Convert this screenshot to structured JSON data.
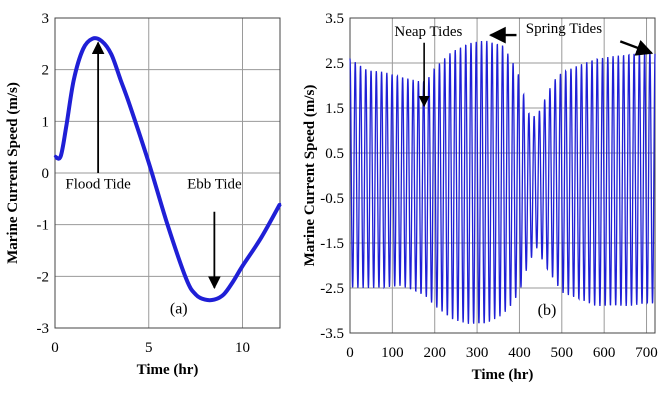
{
  "chart_data": [
    {
      "type": "line",
      "panel_label": "(a)",
      "xlabel": "Time (hr)",
      "ylabel": "Marine Current Speed (m/s)",
      "xlim": [
        0,
        12
      ],
      "ylim": [
        -3,
        3
      ],
      "xticks": [
        0,
        5,
        10
      ],
      "yticks": [
        -3,
        -2,
        -1,
        0,
        1,
        2,
        3
      ],
      "grid": true,
      "series": [
        {
          "color": "#1f1fd6",
          "x": [
            0,
            0.3,
            0.6,
            1.0,
            1.5,
            2.0,
            2.5,
            3.0,
            3.5,
            4.0,
            5.0,
            6.0,
            7.0,
            7.5,
            8.0,
            8.5,
            9.0,
            9.5,
            10.0,
            11.0,
            12.0
          ],
          "y": [
            0.32,
            0.32,
            0.9,
            1.8,
            2.4,
            2.6,
            2.55,
            2.3,
            1.8,
            1.3,
            0.2,
            -1.0,
            -2.05,
            -2.35,
            -2.45,
            -2.45,
            -2.35,
            -2.1,
            -1.8,
            -1.25,
            -0.6
          ]
        }
      ],
      "annotations": [
        {
          "text": "Flood Tide",
          "x": 2.3,
          "y": 2.6
        },
        {
          "text": "Ebb Tide",
          "x": 8.5,
          "y": -2.3
        }
      ]
    },
    {
      "type": "line",
      "panel_label": "(b)",
      "xlabel": "Time (hr)",
      "ylabel": "Marine Current Speed (m/s)",
      "xlim": [
        0,
        720
      ],
      "ylim": [
        -3.5,
        3.5
      ],
      "xticks": [
        0,
        100,
        200,
        300,
        400,
        500,
        600,
        700
      ],
      "yticks": [
        -3.5,
        -2.5,
        -1.5,
        -0.5,
        0.5,
        1.5,
        2.5,
        3.5
      ],
      "grid": true,
      "series": [
        {
          "color": "#1f1fd6",
          "period_hr": 12.42,
          "x": [
            0,
            40,
            80,
            120,
            160,
            180,
            200,
            240,
            280,
            320,
            360,
            380,
            400,
            420,
            440,
            460,
            480,
            500,
            540,
            580,
            620,
            660,
            700,
            720
          ],
          "max": [
            2.6,
            2.35,
            2.3,
            2.2,
            2.1,
            2.1,
            2.4,
            2.75,
            2.95,
            3.0,
            2.9,
            2.6,
            2.2,
            1.4,
            1.3,
            1.7,
            2.1,
            2.3,
            2.45,
            2.6,
            2.65,
            2.7,
            2.75,
            2.75
          ],
          "min": [
            -2.5,
            -2.5,
            -2.5,
            -2.45,
            -2.6,
            -2.7,
            -2.9,
            -3.2,
            -3.3,
            -3.3,
            -3.1,
            -2.9,
            -2.6,
            -2.0,
            -1.6,
            -2.0,
            -2.3,
            -2.6,
            -2.75,
            -2.9,
            -2.9,
            -2.9,
            -2.85,
            -2.85
          ]
        }
      ],
      "annotations": [
        {
          "text": "Neap Tides",
          "x": 175,
          "y": 1.5
        },
        {
          "text": "Spring Tides",
          "x": 330,
          "y": 3.0
        }
      ]
    }
  ]
}
